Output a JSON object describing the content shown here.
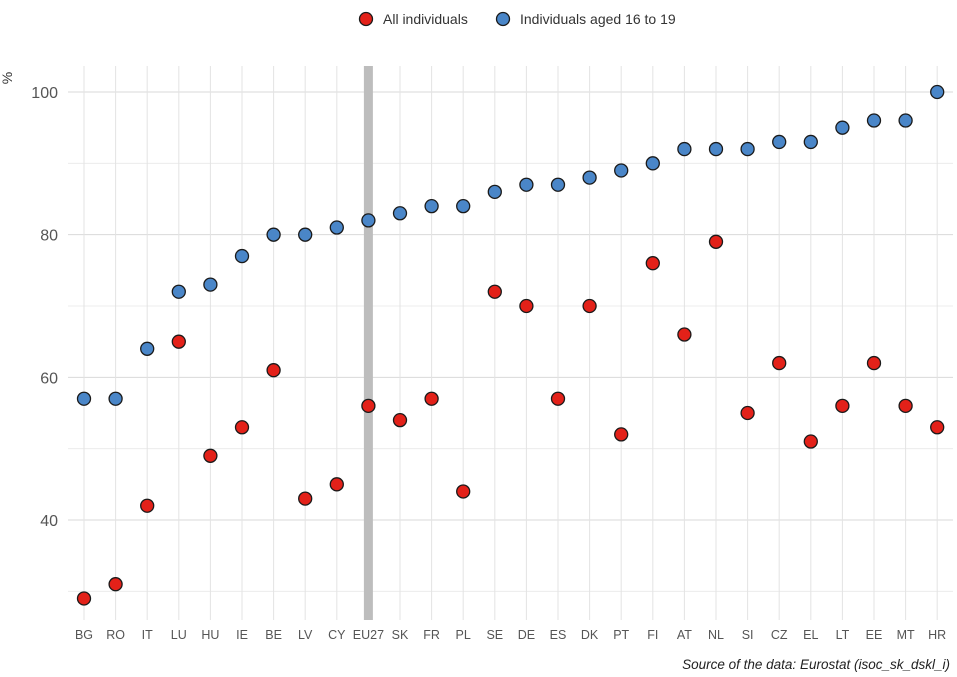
{
  "chart_data": {
    "type": "scatter",
    "ylabel": "%",
    "ylim": [
      25,
      104
    ],
    "yticks": [
      40,
      60,
      80,
      100
    ],
    "grid": true,
    "legend_position": "top-center",
    "highlight_category": "EU27",
    "categories": [
      "BG",
      "RO",
      "IT",
      "LU",
      "HU",
      "IE",
      "BE",
      "LV",
      "CY",
      "EU27",
      "SK",
      "FR",
      "PL",
      "SE",
      "DE",
      "ES",
      "DK",
      "PT",
      "FI",
      "AT",
      "NL",
      "SI",
      "CZ",
      "EL",
      "LT",
      "EE",
      "MT",
      "HR"
    ],
    "series": [
      {
        "name": "All individuals",
        "color": "#e32119",
        "values": [
          29,
          31,
          42,
          65,
          49,
          53,
          61,
          43,
          45,
          56,
          54,
          57,
          44,
          72,
          70,
          57,
          70,
          52,
          76,
          66,
          79,
          55,
          62,
          51,
          56,
          62,
          56,
          53
        ]
      },
      {
        "name": "Individuals aged 16 to 19",
        "color": "#4a86c8",
        "values": [
          57,
          57,
          64,
          72,
          73,
          77,
          80,
          80,
          81,
          82,
          83,
          84,
          84,
          86,
          87,
          87,
          88,
          89,
          90,
          92,
          92,
          92,
          93,
          93,
          95,
          96,
          96,
          100
        ]
      }
    ],
    "source": "Source of the data: Eurostat (isoc_sk_dskl_i)"
  }
}
